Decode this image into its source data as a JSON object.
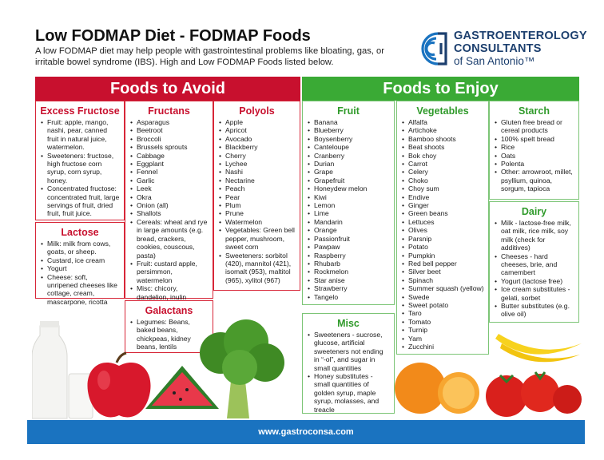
{
  "header": {
    "title": "Low FODMAP Diet - FODMAP Foods",
    "subtitle": "A low FODMAP diet may help people with gastrointestinal problems like bloating, gas, or irritable bowel syndrome (IBS). High and Low FODMAP Foods listed below."
  },
  "logo": {
    "line1": "GASTROENTEROLOGY",
    "line2": "CONSULTANTS",
    "line3": "of San Antonio™",
    "icon": "gc-logo-icon",
    "color": "#1c3f6e"
  },
  "sections": {
    "avoid_title": "Foods to Avoid",
    "enjoy_title": "Foods to Enjoy",
    "avoid_color": "#c8102e",
    "enjoy_color": "#3aaa35"
  },
  "avoid": {
    "excess_fructose": {
      "title": "Excess Fructose",
      "items": [
        "Fruit: apple, mango, nashi, pear, canned fruit in natural juice, watermelon.",
        "Sweeteners: fructose, high fructose corn syrup, corn syrup, honey.",
        "Concentrated fructose: concentrated fruit, large servings of fruit, dried fruit, fruit juice."
      ]
    },
    "lactose": {
      "title": "Lactose",
      "items": [
        "Milk: milk from cows, goats, or sheep.",
        "Custard, ice cream",
        "Yogurt",
        "Cheese: soft, unripened cheeses like cottage, cream, mascarpone, ricotta"
      ]
    },
    "fructans": {
      "title": "Fructans",
      "items": [
        "Asparagus",
        "Beetroot",
        "Broccoli",
        "Brussels sprouts",
        "Cabbage",
        "Eggplant",
        "Fennel",
        "Garlic",
        "Leek",
        "Okra",
        "Onion (all)",
        "Shallots",
        "Cereals: wheat and rye in large amounts (e.g. bread, crackers, cookies, couscous, pasta)",
        "Fruit: custard apple, persimmon, watermelon",
        "Misc: chicory, dandelion, inulin"
      ]
    },
    "galactans": {
      "title": "Galactans",
      "items": [
        "Legumes: Beans, baked beans, chickpeas, kidney beans, lentils"
      ]
    },
    "polyols": {
      "title": "Polyols",
      "items": [
        "Apple",
        "Apricot",
        "Avocado",
        "Blackberry",
        "Cherry",
        "Lychee",
        "Nashi",
        "Nectarine",
        "Peach",
        "Pear",
        "Plum",
        "Prune",
        "Watermelon",
        "Vegetables: Green bell pepper, mushroom, sweet corn",
        "Sweeteners: sorbitol (420), mannitol (421), isomalt (953), maltitol (965), xylitol (967)"
      ]
    }
  },
  "enjoy": {
    "fruit": {
      "title": "Fruit",
      "items": [
        "Banana",
        "Blueberry",
        "Boysenberry",
        "Canteloupe",
        "Cranberry",
        "Durian",
        "Grape",
        "Grapefruit",
        "Honeydew melon",
        "Kiwi",
        "Lemon",
        "Lime",
        "Mandarin",
        "Orange",
        "Passionfruit",
        "Pawpaw",
        "Raspberry",
        "Rhubarb",
        "Rockmelon",
        "Star anise",
        "Strawberry",
        "Tangelo"
      ]
    },
    "misc": {
      "title": "Misc",
      "items": [
        "Sweeteners - sucrose, glucose, artificial sweeteners not ending in “-ol”, and sugar in small quantities",
        "Honey substitutes - small quantities of golden syrup, maple syrup, molasses, and treacle"
      ]
    },
    "vegetables": {
      "title": "Vegetables",
      "items": [
        "Alfalfa",
        "Artichoke",
        "Bamboo shoots",
        "Beat shoots",
        "Bok choy",
        "Carrot",
        "Celery",
        "Choko",
        "Choy sum",
        "Endive",
        "Ginger",
        "Green beans",
        "Lettuces",
        "Olives",
        "Parsnip",
        "Potato",
        "Pumpkin",
        "Red bell pepper",
        "Silver beet",
        "Spinach",
        "Summer squash (yellow)",
        "Swede",
        "Sweet potato",
        "Taro",
        "Tomato",
        "Turnip",
        "Yam",
        "Zucchini"
      ]
    },
    "starch": {
      "title": "Starch",
      "items": [
        "Gluten free bread or cereal products",
        "100% spelt bread",
        "Rice",
        "Oats",
        "Polenta",
        "Other: arrowroot, millet, psyllium, quinoa, sorgum, tapioca"
      ]
    },
    "dairy": {
      "title": "Dairy",
      "items": [
        "Milk - lactose-free milk, oat milk, rice milk, soy milk (check for additives)",
        "Cheeses - hard cheeses, brie, and camembert",
        "Yogurt (lactose free)",
        "Ice cream substitutes - gelati, sorbet",
        "Butter substitutes (e.g. olive oil)"
      ]
    }
  },
  "images": [
    "milk-bottle-image",
    "apple-image",
    "watermelon-image",
    "broccoli-image",
    "orange-image",
    "banana-image",
    "tomato-image"
  ],
  "footer": {
    "url": "www.gastroconsa.com",
    "color": "#1a73c0"
  }
}
